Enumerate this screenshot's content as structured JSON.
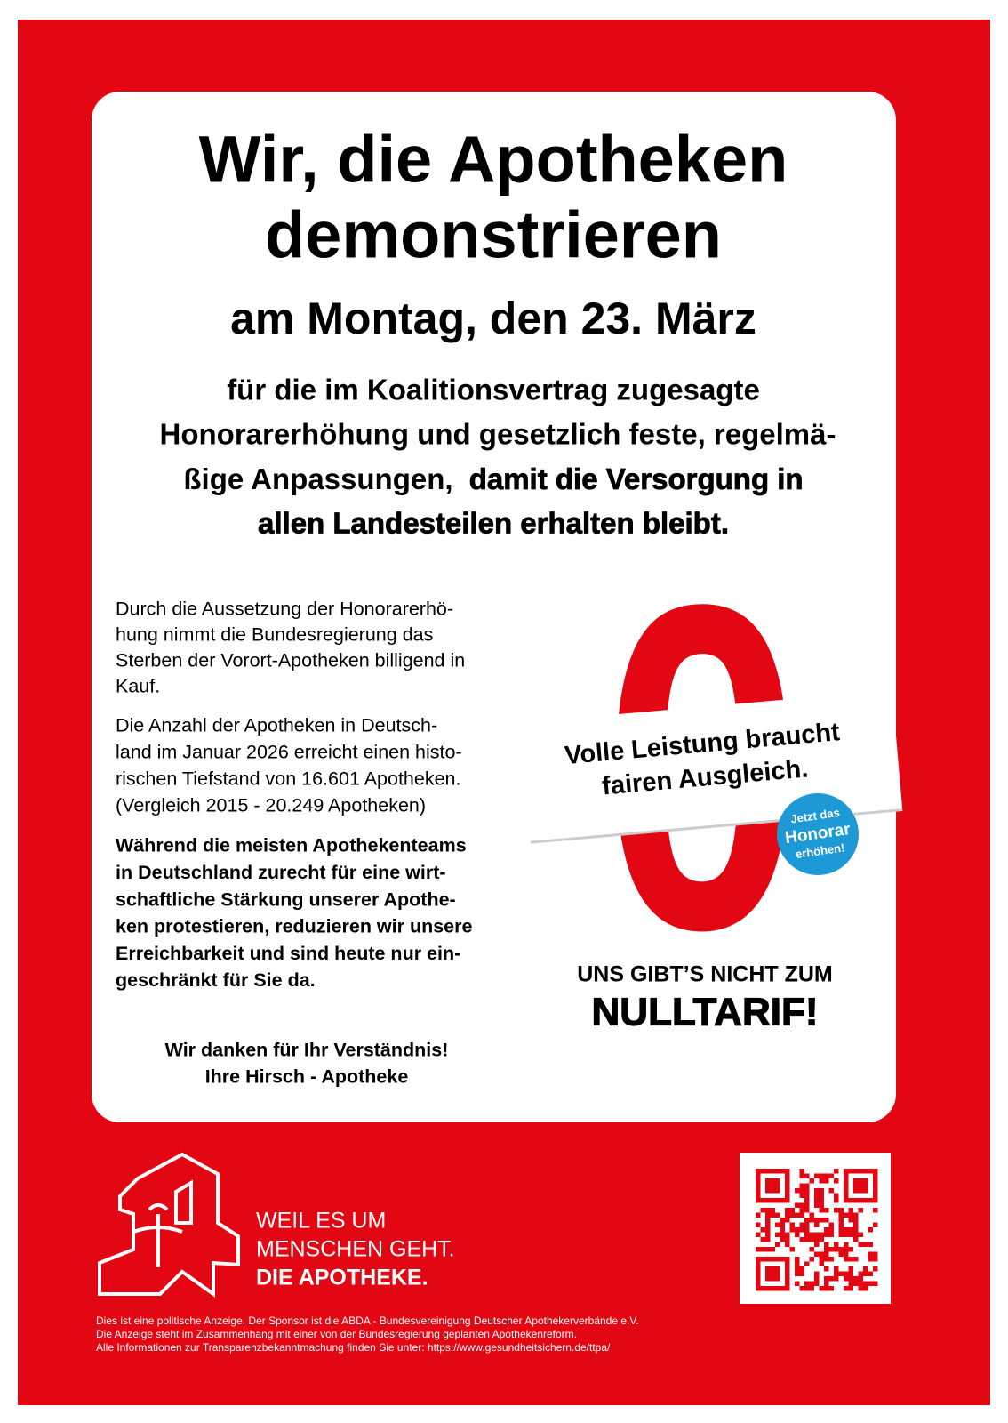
{
  "headline": [
    "Wir, die Apotheken",
    "demonstrieren"
  ],
  "date": "am Montag, den 23. März",
  "intro": {
    "regular": [
      "für die im Koalitionsvertrag zugesagte",
      "Honorarerhöhung und gesetzlich feste, regelmä-",
      "ßige Anpassungen,"
    ],
    "bold": [
      "damit die Versorgung in",
      "allen Landesteilen erhalten bleibt."
    ]
  },
  "body": {
    "paragraph_1": [
      "Durch die Aussetzung der Honorarerhö-",
      "hung nimmt die Bundesregierung das",
      "Sterben der Vorort-Apotheken billigend in",
      "Kauf."
    ],
    "paragraph_2": [
      "Die Anzahl der Apotheken in Deutsch-",
      "land im Januar 2026 erreicht einen histo-",
      "rischen Tiefstand von 16.601 Apotheken.",
      "(Vergleich 2015 - 20.249 Apotheken)"
    ],
    "paragraph_3": [
      "Während die meisten Apothekenteams",
      "in Deutschland zurecht für eine wirt-",
      "schaftliche Stärkung unserer Apothe-",
      "ken protestieren, reduzieren wir unsere",
      "Erreichbarkeit und sind heute nur ein-",
      "geschränkt für Sie da."
    ],
    "thanks": [
      "Wir danken für Ihr Verständnis!",
      "Ihre Hirsch - Apotheke"
    ]
  },
  "campaign": {
    "zero": "0",
    "band": [
      "Volle Leistung braucht",
      "fairen Ausgleich."
    ],
    "badge": [
      "Jetzt das",
      "Honorar",
      "erhöhen!"
    ],
    "slogan": [
      "UNS GIBT’S NICHT ZUM",
      "NULLTARIF!"
    ]
  },
  "footer": {
    "logo_text": [
      "WEIL ES UM",
      "MENSCHEN GEHT.",
      "DIE APOTHEKE."
    ],
    "disclaimer": [
      "Dies ist eine politische Anzeige. Der Sponsor ist die ABDA - Bundesvereinigung Deutscher Apothekerverbände e.V.",
      "Die Anzeige steht im Zusammenhang mit einer von der Bundesregierung geplanten Apothekenreform.",
      "Alle Informationen zur Transparenzbekanntmachung finden Sie unter: https://www.gesundheitsichern.de/ttpa/"
    ]
  }
}
